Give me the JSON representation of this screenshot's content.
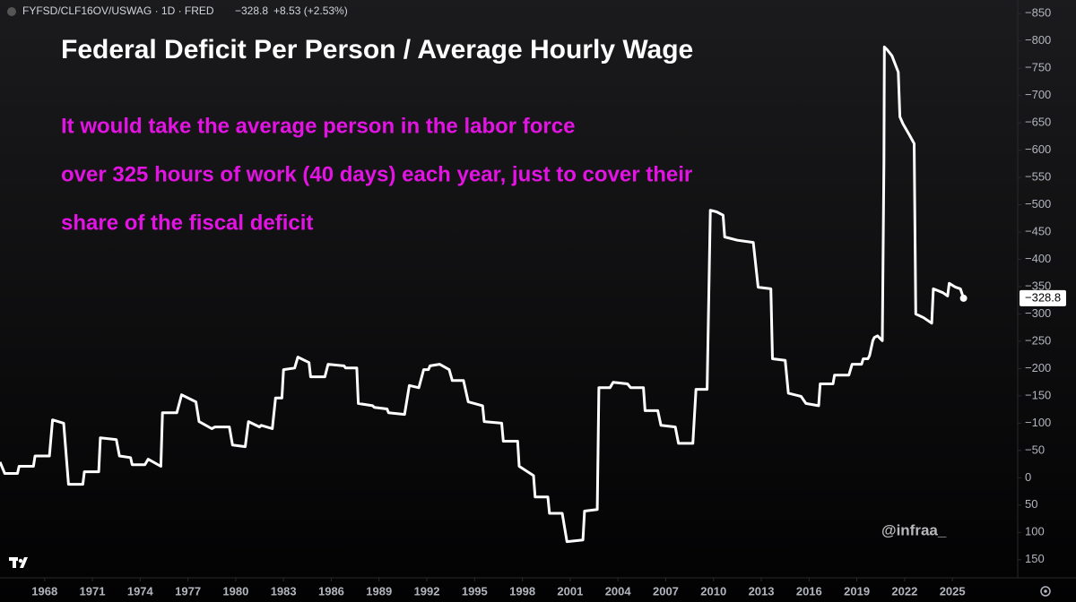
{
  "header": {
    "symbol": "FYFSD/CLF16OV/USWAG · 1D · FRED",
    "last": "−328.8",
    "change": "+8.53 (+2.53%)"
  },
  "chart_data": {
    "type": "line",
    "title": "Federal Deficit Per Person / Average Hourly Wage",
    "annotation": [
      "It would take the average person in the labor force",
      "over 325 hours of work (40 days) each year, just to cover their",
      "share of the fiscal deficit"
    ],
    "watermark": "@infraa_",
    "last_value_label": "−328.8",
    "xlim": [
      1965.2,
      2029.1
    ],
    "xticks": [
      1968,
      1971,
      1974,
      1977,
      1980,
      1983,
      1986,
      1989,
      1992,
      1995,
      1998,
      2001,
      2004,
      2007,
      2010,
      2013,
      2016,
      2019,
      2022,
      2025
    ],
    "ylim": [
      175,
      -875
    ],
    "yticks": [
      {
        "value": -850,
        "label": "−850"
      },
      {
        "value": -800,
        "label": "−800"
      },
      {
        "value": -750,
        "label": "−750"
      },
      {
        "value": -700,
        "label": "−700"
      },
      {
        "value": -650,
        "label": "−650"
      },
      {
        "value": -600,
        "label": "−600"
      },
      {
        "value": -550,
        "label": "−550"
      },
      {
        "value": -500,
        "label": "−500"
      },
      {
        "value": -450,
        "label": "−450"
      },
      {
        "value": -400,
        "label": "−400"
      },
      {
        "value": -350,
        "label": "−350"
      },
      {
        "value": -300,
        "label": "−300"
      },
      {
        "value": -250,
        "label": "−250"
      },
      {
        "value": -200,
        "label": "−200"
      },
      {
        "value": -150,
        "label": "−150"
      },
      {
        "value": -100,
        "label": "−100"
      },
      {
        "value": -50,
        "label": "−50"
      },
      0,
      50,
      100,
      150
    ],
    "grid": false,
    "series": [
      {
        "color": "#ffffff",
        "x": [
          1965.2,
          1965.5,
          1966.3,
          1966.4,
          1967.3,
          1967.4,
          1968.3,
          1968.5,
          1969.2,
          1969.5,
          1970.4,
          1970.5,
          1971.4,
          1971.5,
          1972.5,
          1972.7,
          1973.4,
          1973.5,
          1974.3,
          1974.5,
          1975.3,
          1975.4,
          1976.3,
          1976.6,
          1977.5,
          1977.7,
          1978.5,
          1978.7,
          1979.6,
          1979.8,
          1980.6,
          1980.8,
          1981.5,
          1981.6,
          1982.3,
          1982.5,
          1982.9,
          1983.0,
          1983.7,
          1983.9,
          1984.6,
          1984.7,
          1985.6,
          1985.8,
          1986.8,
          1986.9,
          1987.6,
          1987.7,
          1988.6,
          1988.7,
          1989.5,
          1989.6,
          1990.6,
          1990.9,
          1991.5,
          1991.8,
          1992.1,
          1992.2,
          1992.8,
          1993.4,
          1993.6,
          1994.3,
          1994.6,
          1995.5,
          1995.6,
          1996.7,
          1996.8,
          1997.7,
          1997.8,
          1998.7,
          1998.8,
          1999.6,
          1999.7,
          2000.5,
          2000.8,
          2001.8,
          2001.9,
          2002.7,
          2002.8,
          2003.5,
          2003.7,
          2004.6,
          2004.8,
          2005.6,
          2005.7,
          2006.5,
          2006.7,
          2007.6,
          2007.8,
          2008.7,
          2008.9,
          2009.6,
          2009.8,
          2010.2,
          2010.6,
          2010.7,
          2011.5,
          2012.5,
          2012.8,
          2013.6,
          2013.7,
          2014.5,
          2014.7,
          2015.5,
          2015.8,
          2016.6,
          2016.7,
          2017.5,
          2017.6,
          2018.5,
          2018.7,
          2019.3,
          2019.4,
          2019.7,
          2019.8,
          2020.0,
          2020.1,
          2020.3,
          2020.6,
          2020.7,
          2020.73,
          2020.9,
          2021.2,
          2021.6,
          2021.7,
          2021.9,
          2022.3,
          2022.6,
          2022.7,
          2023.2,
          2023.7,
          2023.8,
          2024.4,
          2024.7,
          2024.8,
          2025.2,
          2025.5,
          2025.7
        ],
        "values": [
          -29,
          -8,
          -8,
          -21,
          -21,
          -40,
          -40,
          -106,
          -100,
          12,
          12,
          -11,
          -11,
          -73,
          -70,
          -40,
          -37,
          -24,
          -24,
          -34,
          -21,
          -119,
          -119,
          -152,
          -139,
          -103,
          -90,
          -93,
          -93,
          -60,
          -57,
          -103,
          -93,
          -96,
          -90,
          -146,
          -146,
          -198,
          -201,
          -221,
          -211,
          -185,
          -185,
          -208,
          -205,
          -201,
          -201,
          -136,
          -132,
          -129,
          -126,
          -119,
          -116,
          -169,
          -165,
          -198,
          -198,
          -205,
          -208,
          -198,
          -178,
          -178,
          -139,
          -132,
          -103,
          -100,
          -67,
          -67,
          -21,
          -4,
          35,
          35,
          65,
          65,
          117,
          114,
          61,
          58,
          -165,
          -165,
          -175,
          -172,
          -165,
          -165,
          -123,
          -123,
          -96,
          -93,
          -63,
          -63,
          -162,
          -162,
          -490,
          -487,
          -481,
          -441,
          -435,
          -431,
          -349,
          -346,
          -218,
          -215,
          -155,
          -149,
          -136,
          -132,
          -172,
          -172,
          -188,
          -188,
          -208,
          -208,
          -218,
          -218,
          -224,
          -251,
          -257,
          -260,
          -251,
          -579,
          -789,
          -784,
          -773,
          -743,
          -661,
          -648,
          -628,
          -612,
          -300,
          -293,
          -283,
          -346,
          -339,
          -333,
          -356,
          -349,
          -346,
          -328.8
        ]
      }
    ]
  }
}
